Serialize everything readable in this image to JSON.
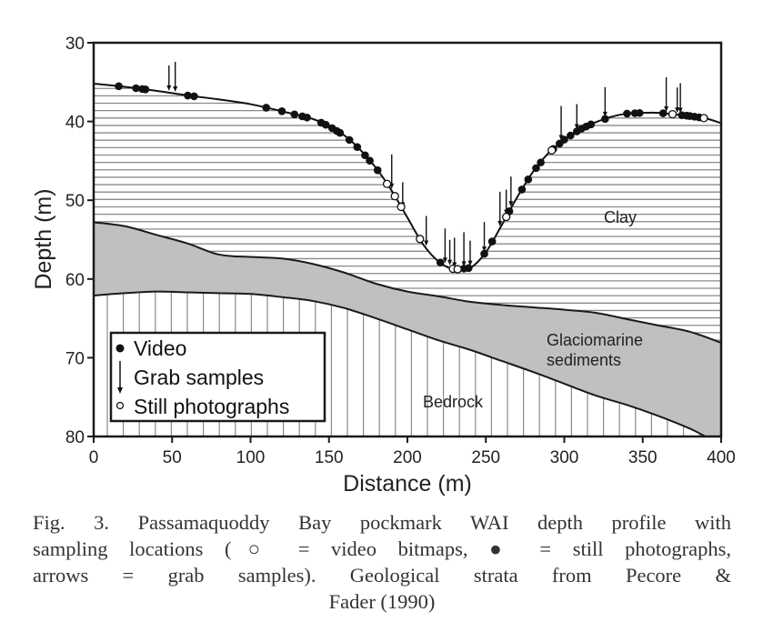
{
  "chart_data": {
    "type": "area",
    "title": "",
    "xlabel": "Distance (m)",
    "ylabel": "Depth (m)",
    "xlim": [
      0,
      400
    ],
    "ylim": [
      30,
      80
    ],
    "y_inverted": true,
    "x_ticks": [
      0,
      50,
      100,
      150,
      200,
      250,
      300,
      350,
      400
    ],
    "y_ticks": [
      30,
      40,
      50,
      60,
      70,
      80
    ],
    "grid": false,
    "seafloor_profile": {
      "x": [
        0,
        20,
        40,
        60,
        80,
        100,
        120,
        140,
        150,
        160,
        170,
        180,
        190,
        200,
        210,
        220,
        230,
        240,
        250,
        260,
        270,
        280,
        290,
        300,
        310,
        320,
        330,
        340,
        350,
        360,
        370,
        380,
        390,
        400
      ],
      "depth": [
        35.2,
        35.6,
        36.1,
        36.7,
        37.2,
        37.8,
        38.7,
        39.7,
        40.6,
        41.8,
        43.6,
        45.9,
        48.8,
        52.2,
        55.6,
        57.8,
        58.8,
        58.6,
        56.6,
        53.2,
        49.6,
        46.4,
        44.0,
        42.3,
        41.0,
        40.1,
        39.4,
        39.0,
        38.9,
        38.9,
        39.1,
        39.3,
        39.6,
        40.2
      ]
    },
    "glaciomarine_top": {
      "x": [
        0,
        20,
        40,
        60,
        80,
        100,
        120,
        140,
        160,
        180,
        200,
        220,
        240,
        260,
        280,
        300,
        320,
        340,
        360,
        380,
        400
      ],
      "depth": [
        52.8,
        53.3,
        54.4,
        55.5,
        56.9,
        57.2,
        57.4,
        58.1,
        59.2,
        60.6,
        61.6,
        62.2,
        62.9,
        63.3,
        63.6,
        63.9,
        64.3,
        65.1,
        65.9,
        66.7,
        68.1
      ]
    },
    "bedrock_top": {
      "x": [
        0,
        20,
        40,
        60,
        80,
        100,
        120,
        140,
        160,
        180,
        200,
        220,
        240,
        260,
        280,
        300,
        320,
        340,
        360,
        380,
        390
      ],
      "depth": [
        62.1,
        61.8,
        61.6,
        61.7,
        61.8,
        61.9,
        62.3,
        62.8,
        63.7,
        65.0,
        66.4,
        67.8,
        69.0,
        70.4,
        71.8,
        73.3,
        74.8,
        76.0,
        77.4,
        79.0,
        80.0
      ]
    },
    "video_points_x": [
      16,
      27,
      31,
      33,
      60,
      64,
      110,
      120,
      128,
      133,
      136,
      145,
      148,
      152,
      155,
      157,
      163,
      168,
      173,
      176,
      181,
      221,
      236,
      239,
      249,
      254,
      265,
      273,
      277,
      282,
      285,
      293,
      297,
      300,
      304,
      308,
      311,
      314,
      317,
      326,
      340,
      345,
      348,
      363,
      375,
      378,
      380,
      383,
      386
    ],
    "still_photo_points_x": [
      187,
      192,
      196,
      208,
      229,
      232,
      263,
      292,
      369,
      389
    ],
    "grab_sample_x": [
      48,
      52,
      190,
      197,
      212,
      224,
      227,
      230,
      236,
      240,
      249,
      259,
      263,
      266,
      298,
      308,
      326,
      365,
      372,
      374
    ],
    "strata_labels": [
      "Clay",
      "Glaciomarine sediments",
      "Bedrock"
    ],
    "legend": [
      "Video",
      "Grab samples",
      "Still photographs"
    ],
    "legend_position": "lower-left"
  },
  "figure": {
    "strata": {
      "clay": "Clay",
      "glaciomarine_line1": "Glaciomarine",
      "glaciomarine_line2": "sediments",
      "bedrock": "Bedrock"
    },
    "legend": {
      "video": "Video",
      "grab": "Grab samples",
      "still": "Still photographs"
    },
    "axes": {
      "x_title": "Distance (m)",
      "y_title": "Depth (m)",
      "x_ticks": [
        "0",
        "50",
        "100",
        "150",
        "200",
        "250",
        "300",
        "350",
        "400"
      ],
      "y_ticks": [
        "30",
        "40",
        "50",
        "60",
        "70",
        "80"
      ]
    },
    "colors": {
      "glaciomarine_fill": "#bfc0c2",
      "hatch_line": "#8a8a8a",
      "outline": "#1a1a1a"
    }
  },
  "caption": {
    "line1": "Fig. 3. Passamaquoddy Bay pockmark WAI depth profile with",
    "line2": "sampling locations (○ = video bitmaps, ● = still photographs,",
    "line3": "arrows = grab samples). Geological strata from Pecore &",
    "line4": "Fader (1990)"
  }
}
